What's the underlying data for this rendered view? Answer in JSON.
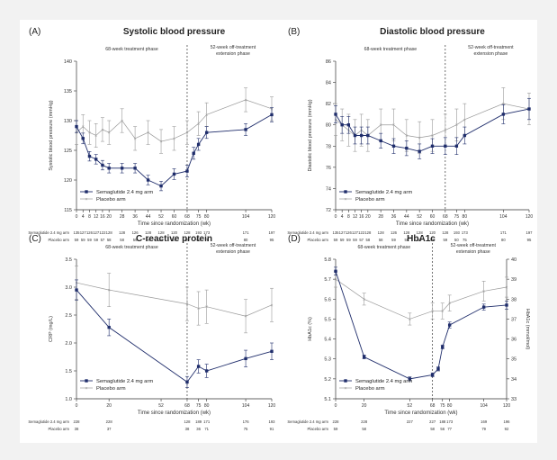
{
  "colors": {
    "background": "#f2f2f2",
    "panel": "#ffffff",
    "semaglutide": "#1f2d6b",
    "placebo": "#9a9a9a",
    "axis": "#333333"
  },
  "legend_labels": {
    "semaglutide": "Semaglutide 2.4 mg arm",
    "placebo": "Placebo arm"
  },
  "phase_labels": {
    "treatment": "68-week treatment phase",
    "offtreatment_line1": "52-week off-treatment",
    "offtreatment_line2": "extension phase"
  },
  "xlabel": "Time since randomization (wk)",
  "chart_data": [
    {
      "panel": "(A)",
      "type": "line",
      "title": "Systolic blood pressure",
      "ylabel": "Systolic blood pressure (mmHg)",
      "ylim": [
        115,
        140
      ],
      "yticks": [
        115,
        120,
        125,
        130,
        135,
        140
      ],
      "xlim": [
        0,
        120
      ],
      "xticks": [
        0,
        4,
        8,
        12,
        16,
        20,
        28,
        36,
        44,
        52,
        60,
        68,
        75,
        80,
        104,
        120
      ],
      "xtick_labels": [
        "0",
        "4",
        "8",
        "12",
        "16",
        "20",
        "28",
        "36",
        "44",
        "52",
        "60",
        "68",
        "75",
        "80",
        "104",
        "120"
      ],
      "series": [
        {
          "name": "Semaglutide 2.4 mg arm",
          "x": [
            0,
            4,
            8,
            12,
            16,
            20,
            28,
            36,
            44,
            52,
            60,
            68,
            72,
            75,
            80,
            104,
            120
          ],
          "values": [
            129,
            127,
            124,
            123.5,
            122.5,
            122,
            122,
            122,
            120,
            119,
            121,
            121.5,
            124.5,
            126,
            128,
            128.5,
            131
          ],
          "errors": [
            1.0,
            0.9,
            0.8,
            0.8,
            0.8,
            0.8,
            0.8,
            0.8,
            0.8,
            0.8,
            0.9,
            1.0,
            1.0,
            1.0,
            1.0,
            1.0,
            1.2
          ]
        },
        {
          "name": "Placebo arm",
          "x": [
            0,
            4,
            8,
            12,
            16,
            20,
            28,
            36,
            44,
            52,
            60,
            68,
            75,
            80,
            104,
            120
          ],
          "values": [
            128,
            129,
            128,
            127.5,
            128.5,
            128,
            130,
            127,
            128,
            126.5,
            127,
            128,
            129.5,
            131,
            133.5,
            132
          ],
          "errors": [
            2.0,
            2.0,
            2.0,
            2.0,
            2.0,
            2.0,
            2.0,
            2.0,
            2.0,
            2.0,
            2.0,
            2.0,
            2.0,
            2.0,
            2.0,
            2.0
          ]
        }
      ],
      "risk_table": {
        "rows": [
          {
            "label": "Semaglutide 2.4 mg arm",
            "values": [
              "135",
              "127",
              "126",
              "127",
              "122",
              "128",
              "128",
              "126",
              "128",
              "128",
              "120",
              "128",
              "193",
              "173",
              "171",
              "197"
            ]
          },
          {
            "label": "Placebo arm",
            "values": [
              "59",
              "59",
              "59",
              "59",
              "57",
              "58",
              "58",
              "59",
              "59",
              "59",
              "58",
              "59",
              "50",
              "75",
              "80",
              "95"
            ]
          }
        ]
      }
    },
    {
      "panel": "(B)",
      "type": "line",
      "title": "Diastolic blood pressure",
      "ylabel": "Diastolic blood pressure (mmHg)",
      "ylim": [
        72,
        86
      ],
      "yticks": [
        72,
        74,
        76,
        78,
        80,
        82,
        84,
        86
      ],
      "xlim": [
        0,
        120
      ],
      "xticks": [
        0,
        4,
        8,
        12,
        16,
        20,
        28,
        36,
        44,
        52,
        60,
        68,
        75,
        80,
        104,
        120
      ],
      "xtick_labels": [
        "0",
        "4",
        "8",
        "12",
        "16",
        "20",
        "28",
        "36",
        "44",
        "52",
        "60",
        "68",
        "75",
        "80",
        "104",
        "120"
      ],
      "series": [
        {
          "name": "Semaglutide 2.4 mg arm",
          "x": [
            0,
            4,
            8,
            12,
            16,
            20,
            28,
            36,
            44,
            52,
            60,
            68,
            75,
            80,
            104,
            120
          ],
          "values": [
            81,
            80,
            80,
            79,
            79,
            79,
            78.5,
            78,
            77.8,
            77.5,
            78,
            78,
            78,
            79,
            81,
            81.5
          ],
          "errors": [
            0.8,
            0.8,
            0.8,
            0.8,
            0.8,
            0.8,
            0.7,
            0.7,
            0.7,
            0.7,
            0.7,
            0.8,
            0.8,
            0.8,
            0.9,
            1.0
          ]
        },
        {
          "name": "Placebo arm",
          "x": [
            0,
            4,
            8,
            12,
            16,
            20,
            28,
            36,
            44,
            52,
            60,
            68,
            75,
            80,
            104,
            120
          ],
          "values": [
            80.5,
            80,
            79.5,
            79,
            79.5,
            79,
            80,
            80,
            79,
            78.8,
            79,
            79.5,
            80,
            80.5,
            82,
            81.5
          ],
          "errors": [
            1.5,
            1.5,
            1.5,
            1.5,
            1.5,
            1.5,
            1.5,
            1.5,
            1.5,
            1.5,
            1.5,
            1.5,
            1.5,
            1.5,
            1.5,
            1.5
          ]
        }
      ],
      "risk_table": {
        "rows": [
          {
            "label": "Semaglutide 2.4 mg arm",
            "values": [
              "135",
              "127",
              "126",
              "127",
              "122",
              "128",
              "128",
              "126",
              "128",
              "128",
              "120",
              "128",
              "193",
              "173",
              "171",
              "197"
            ]
          },
          {
            "label": "Placebo arm",
            "values": [
              "59",
              "59",
              "59",
              "59",
              "57",
              "58",
              "58",
              "59",
              "59",
              "59",
              "58",
              "59",
              "50",
              "75",
              "80",
              "95"
            ]
          }
        ]
      }
    },
    {
      "panel": "(C)",
      "type": "line",
      "title": "C-reactive protein",
      "ylabel": "CRP (mg/L)",
      "ylim": [
        1.0,
        3.5
      ],
      "yticks": [
        1.0,
        1.5,
        2.0,
        2.5,
        3.0,
        3.5
      ],
      "ytick_labels": [
        "1.0",
        "1.5",
        "2.0",
        "2.5",
        "3.0",
        "3.5"
      ],
      "xlim": [
        0,
        120
      ],
      "xticks": [
        0,
        20,
        52,
        68,
        75,
        80,
        104,
        120
      ],
      "xtick_labels": [
        "0",
        "20",
        "52",
        "68",
        "75",
        "80",
        "104",
        "120"
      ],
      "series": [
        {
          "name": "Semaglutide 2.4 mg arm",
          "x": [
            0,
            20,
            68,
            75,
            80,
            104,
            120
          ],
          "values": [
            2.95,
            2.28,
            1.3,
            1.58,
            1.5,
            1.72,
            1.85
          ],
          "errors": [
            0.18,
            0.15,
            0.1,
            0.12,
            0.12,
            0.15,
            0.15
          ]
        },
        {
          "name": "Placebo arm",
          "x": [
            0,
            20,
            68,
            75,
            80,
            104,
            120
          ],
          "values": [
            3.08,
            2.95,
            2.7,
            2.62,
            2.65,
            2.48,
            2.68
          ],
          "errors": [
            0.3,
            0.3,
            0.3,
            0.3,
            0.3,
            0.3,
            0.3
          ]
        }
      ],
      "risk_table": {
        "rows": [
          {
            "label": "Semaglutide 2.4 mg arm",
            "values": [
              "228",
              "228",
              "",
              "128",
              "189",
              "171",
              "176",
              "193"
            ]
          },
          {
            "label": "Placebo arm",
            "values": [
              "38",
              "37",
              "",
              "38",
              "36",
              "71",
              "75",
              "91"
            ]
          }
        ]
      }
    },
    {
      "panel": "(D)",
      "type": "line",
      "title": "HbA1c",
      "ylabel": "HbA1c (%)",
      "ylabel_right": "HbA1c (mmol/mol)",
      "ylim": [
        5.1,
        5.8
      ],
      "yticks": [
        5.1,
        5.2,
        5.3,
        5.4,
        5.5,
        5.6,
        5.7,
        5.8
      ],
      "ytick_labels": [
        "5.1",
        "5.2",
        "5.3",
        "5.4",
        "5.5",
        "5.6",
        "5.7",
        "5.8"
      ],
      "yright_ticks": [
        33,
        34,
        35,
        36,
        37,
        38,
        39,
        40
      ],
      "xlim": [
        0,
        120
      ],
      "xticks": [
        0,
        20,
        52,
        68,
        75,
        80,
        104,
        120
      ],
      "xtick_labels": [
        "0",
        "20",
        "52",
        "68",
        "75",
        "80",
        "104",
        "120"
      ],
      "series": [
        {
          "name": "Semaglutide 2.4 mg arm",
          "x": [
            0,
            20,
            52,
            68,
            72,
            75,
            80,
            104,
            120
          ],
          "values": [
            5.74,
            5.31,
            5.2,
            5.22,
            5.25,
            5.36,
            5.47,
            5.56,
            5.57
          ],
          "errors": [
            0.02,
            0.01,
            0.01,
            0.01,
            0.01,
            0.01,
            0.015,
            0.015,
            0.02
          ]
        },
        {
          "name": "Placebo arm",
          "x": [
            0,
            20,
            52,
            68,
            75,
            80,
            104,
            120
          ],
          "values": [
            5.7,
            5.6,
            5.5,
            5.54,
            5.54,
            5.58,
            5.64,
            5.66
          ],
          "errors": [
            0.04,
            0.03,
            0.03,
            0.04,
            0.04,
            0.04,
            0.05,
            0.05
          ]
        }
      ],
      "risk_table": {
        "rows": [
          {
            "label": "Semaglutide 2.4 mg arm",
            "values": [
              "228",
              "228",
              "227",
              "227",
              "188",
              "173",
              "169",
              "196"
            ]
          },
          {
            "label": "Placebo arm",
            "values": [
              "59",
              "58",
              "",
              "58",
              "56",
              "77",
              "79",
              "92"
            ]
          }
        ]
      }
    }
  ]
}
